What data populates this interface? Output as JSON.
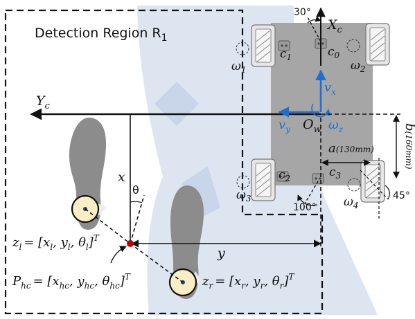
{
  "region": {
    "title": "Detection Region R",
    "title_sub": "1"
  },
  "robot": {
    "axis_xc": "X",
    "axis_xc_sub": "c",
    "axis_yc": "Y",
    "axis_yc_sub": "c",
    "origin": "O",
    "origin_sub": "w",
    "vx": "v",
    "vx_sub": "x",
    "vy": "v",
    "vy_sub": "y",
    "wz": "ω",
    "wz_sub": "z",
    "angle_top": "30°",
    "angle_bottom": "100°",
    "angle_right": "45°",
    "dim_a": "a",
    "dim_a_note": "(130mm)",
    "dim_b": "b",
    "dim_b_note": "(160mm)",
    "wheels": [
      {
        "c": "c",
        "c_sub": "1",
        "w": "ω",
        "w_sub": "1"
      },
      {
        "c": "c",
        "c_sub": "0",
        "w": "ω",
        "w_sub": "2"
      },
      {
        "c": "c",
        "c_sub": "2",
        "w": "ω",
        "w_sub": "3"
      },
      {
        "c": "c",
        "c_sub": "3",
        "w": "ω",
        "w_sub": "4"
      }
    ]
  },
  "human": {
    "x_label": "x",
    "y_label": "y",
    "theta": "θ",
    "zl": {
      "lhs": "z",
      "lhs_sub": "l",
      "rhs": "= [x",
      "rhs_sub1": "l",
      "mid1": ", y",
      "rhs_sub2": "l",
      "mid2": ", θ",
      "rhs_sub3": "l",
      "tail": "]",
      "sup": "T"
    },
    "zr": {
      "lhs": "z",
      "lhs_sub": "r",
      "rhs": "= [x",
      "rhs_sub1": "r",
      "mid1": ", y",
      "rhs_sub2": "r",
      "mid2": ", θ",
      "rhs_sub3": "r",
      "tail": "]",
      "sup": "T"
    },
    "phc": {
      "lhs": "P",
      "lhs_sub": "hc",
      "rhs": "= [x",
      "rhs_sub1": "hc",
      "mid1": ", y",
      "rhs_sub2": "hc",
      "mid2": ", θ",
      "rhs_sub3": "hc",
      "tail": "]",
      "sup": "T"
    }
  },
  "colors": {
    "robot_body": "#a6a6a6",
    "fov": "#dde5f1",
    "fov_dark": "#c9d5e8",
    "foot": "#8c8c8c",
    "foot_marker": "#fbedc4",
    "accent_blue": "#1f6fd0",
    "center_dot": "#c00000"
  }
}
